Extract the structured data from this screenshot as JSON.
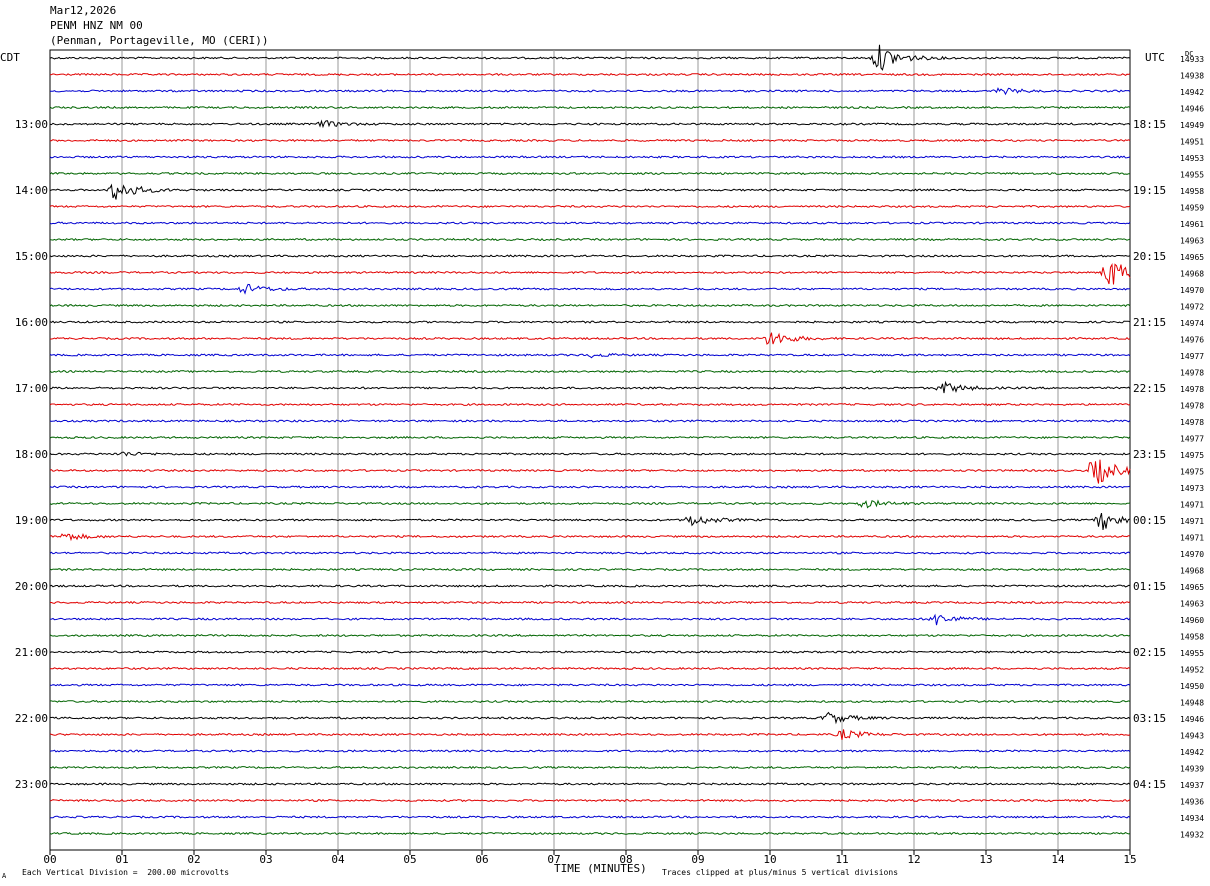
{
  "header": {
    "date": "Mar12,2026",
    "station": "PENM HNZ NM 00",
    "location": "(Penman, Portageville, MO (CERI))"
  },
  "footer": {
    "scale_note": "Each Vertical Division =  200.00 microvolts",
    "clip_note": "Traces clipped at plus/minus 5 vertical divisions",
    "corner_mark": "A"
  },
  "chart_data": {
    "type": "line",
    "title": "PENM HNZ NM 00",
    "xlabel": "TIME (MINUTES)",
    "x_tick_labels": [
      "00",
      "01",
      "02",
      "03",
      "04",
      "05",
      "06",
      "07",
      "08",
      "09",
      "10",
      "11",
      "12",
      "13",
      "14",
      "15"
    ],
    "xlim": [
      0,
      15
    ],
    "left_axis_label": "CDT",
    "right_axis_label": "UTC",
    "dc_label": "DC",
    "row_minutes": 15,
    "trace_colors": [
      "#000000",
      "#e00000",
      "#0000d0",
      "#006400"
    ],
    "grid": true,
    "cdt_hour_labels": [
      "13:00",
      "14:00",
      "15:00",
      "16:00",
      "17:00",
      "18:00",
      "19:00",
      "20:00",
      "21:00",
      "22:00",
      "23:00"
    ],
    "utc_hour_labels": [
      "18:15",
      "19:15",
      "20:15",
      "21:15",
      "22:15",
      "23:15",
      "00:15",
      "01:15",
      "02:15",
      "03:15",
      "04:15"
    ],
    "dc_offsets": [
      14933,
      14938,
      14942,
      14946,
      14949,
      14951,
      14953,
      14955,
      14958,
      14959,
      14961,
      14963,
      14965,
      14968,
      14970,
      14972,
      14974,
      14976,
      14977,
      14978,
      14978,
      14978,
      14978,
      14977,
      14975,
      14975,
      14973,
      14971,
      14971,
      14971,
      14970,
      14968,
      14965,
      14963,
      14960,
      14958,
      14955,
      14952,
      14950,
      14948,
      14946,
      14943,
      14942,
      14939,
      14937,
      14936,
      14934,
      14932
    ],
    "events": [
      {
        "row": 0,
        "minute": 11.5,
        "amplitude": 14
      },
      {
        "row": 2,
        "minute": 13.2,
        "amplitude": 3
      },
      {
        "row": 4,
        "minute": 3.8,
        "amplitude": 3
      },
      {
        "row": 8,
        "minute": 0.9,
        "amplitude": 11
      },
      {
        "row": 13,
        "minute": 14.7,
        "amplitude": 16
      },
      {
        "row": 14,
        "minute": 2.7,
        "amplitude": 5
      },
      {
        "row": 17,
        "minute": 10.0,
        "amplitude": 8
      },
      {
        "row": 18,
        "minute": 7.5,
        "amplitude": 2
      },
      {
        "row": 20,
        "minute": 12.4,
        "amplitude": 6
      },
      {
        "row": 24,
        "minute": 1.0,
        "amplitude": 2
      },
      {
        "row": 25,
        "minute": 14.5,
        "amplitude": 16
      },
      {
        "row": 27,
        "minute": 11.3,
        "amplitude": 4
      },
      {
        "row": 28,
        "minute": 8.9,
        "amplitude": 6
      },
      {
        "row": 28,
        "minute": 14.6,
        "amplitude": 10
      },
      {
        "row": 29,
        "minute": 0.2,
        "amplitude": 4
      },
      {
        "row": 34,
        "minute": 12.3,
        "amplitude": 6
      },
      {
        "row": 40,
        "minute": 10.8,
        "amplitude": 6
      },
      {
        "row": 41,
        "minute": 11.0,
        "amplitude": 5
      }
    ]
  }
}
